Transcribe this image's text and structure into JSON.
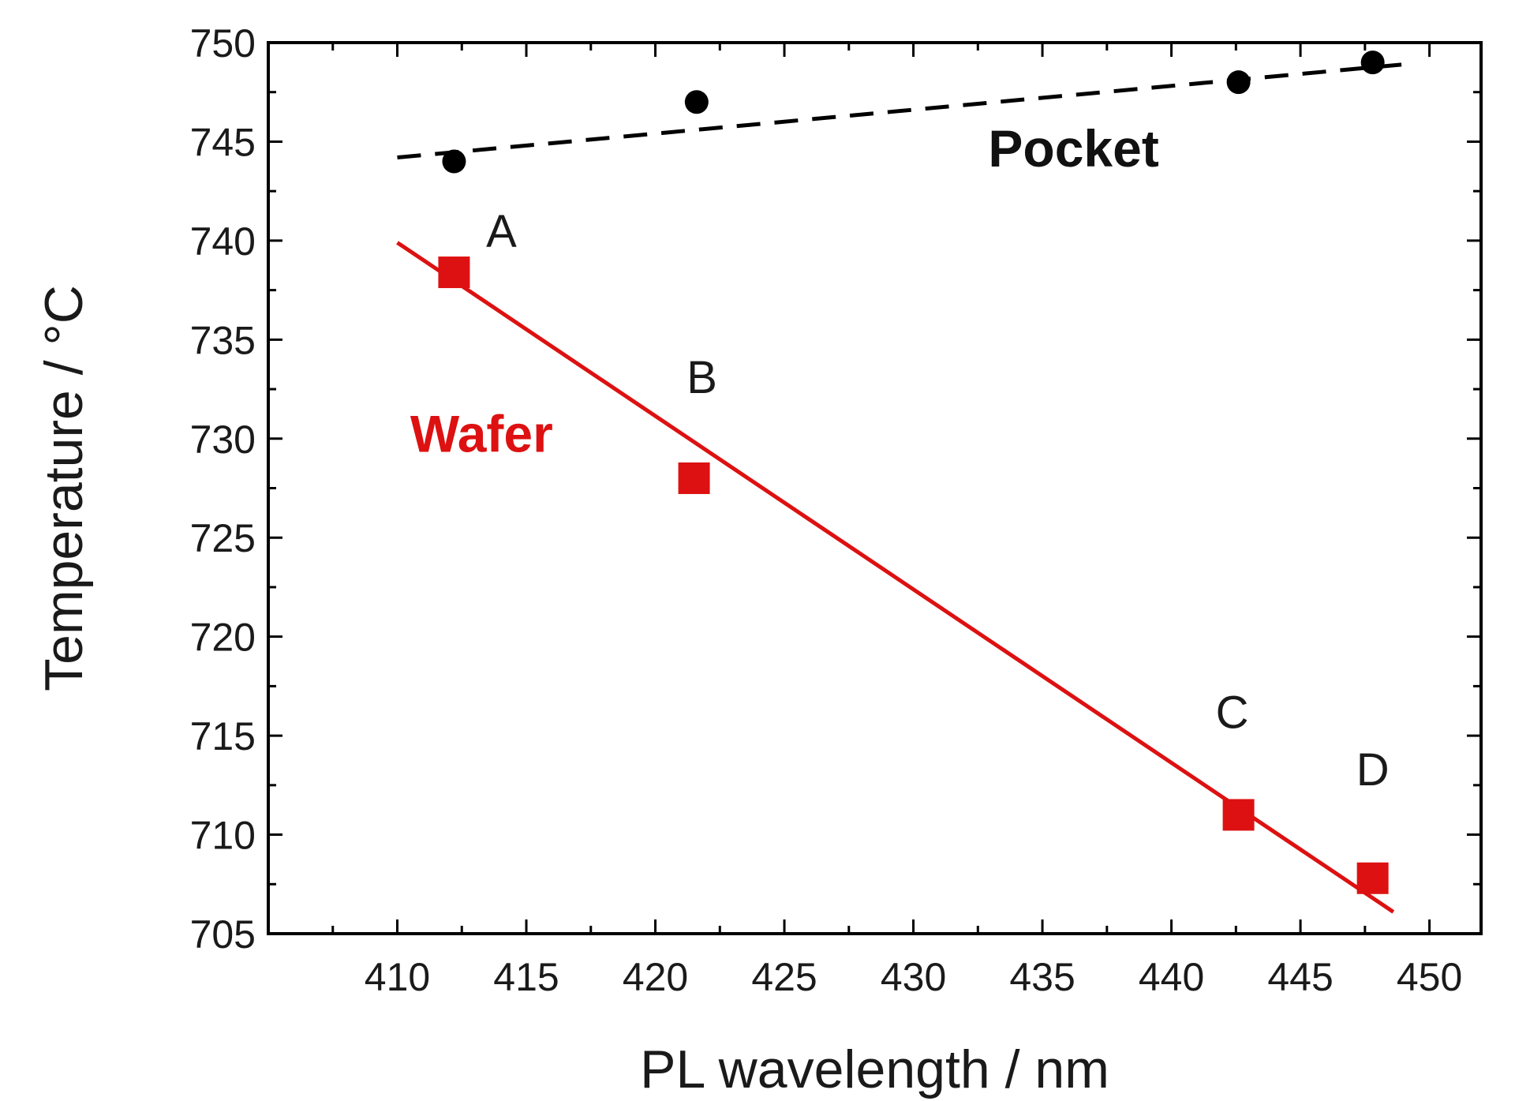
{
  "chart_data": {
    "type": "scatter",
    "xlabel": "PL wavelength / nm",
    "ylabel": "Temperature / °C",
    "xlim": [
      405,
      452
    ],
    "ylim": [
      705,
      750
    ],
    "x_ticks": [
      410,
      415,
      420,
      425,
      430,
      435,
      440,
      445,
      450
    ],
    "y_ticks": [
      705,
      710,
      715,
      720,
      725,
      730,
      735,
      740,
      745,
      750
    ],
    "grid": false,
    "series": [
      {
        "name": "Pocket",
        "color": "#000000",
        "marker": "circle",
        "x": [
          412.2,
          421.6,
          442.6,
          447.8
        ],
        "y": [
          744,
          747,
          748,
          749
        ],
        "fit": {
          "x": [
            410,
            449
          ],
          "y": [
            744.2,
            748.9
          ],
          "style": "dashed"
        }
      },
      {
        "name": "Wafer",
        "color": "#dd1111",
        "marker": "square",
        "x": [
          412.2,
          421.5,
          442.6,
          447.8
        ],
        "y": [
          738.4,
          728,
          711,
          707.8
        ],
        "point_labels": [
          "A",
          "B",
          "C",
          "D"
        ],
        "fit": {
          "x": [
            410,
            448.6
          ],
          "y": [
            739.9,
            706.1
          ],
          "style": "solid"
        }
      }
    ]
  }
}
